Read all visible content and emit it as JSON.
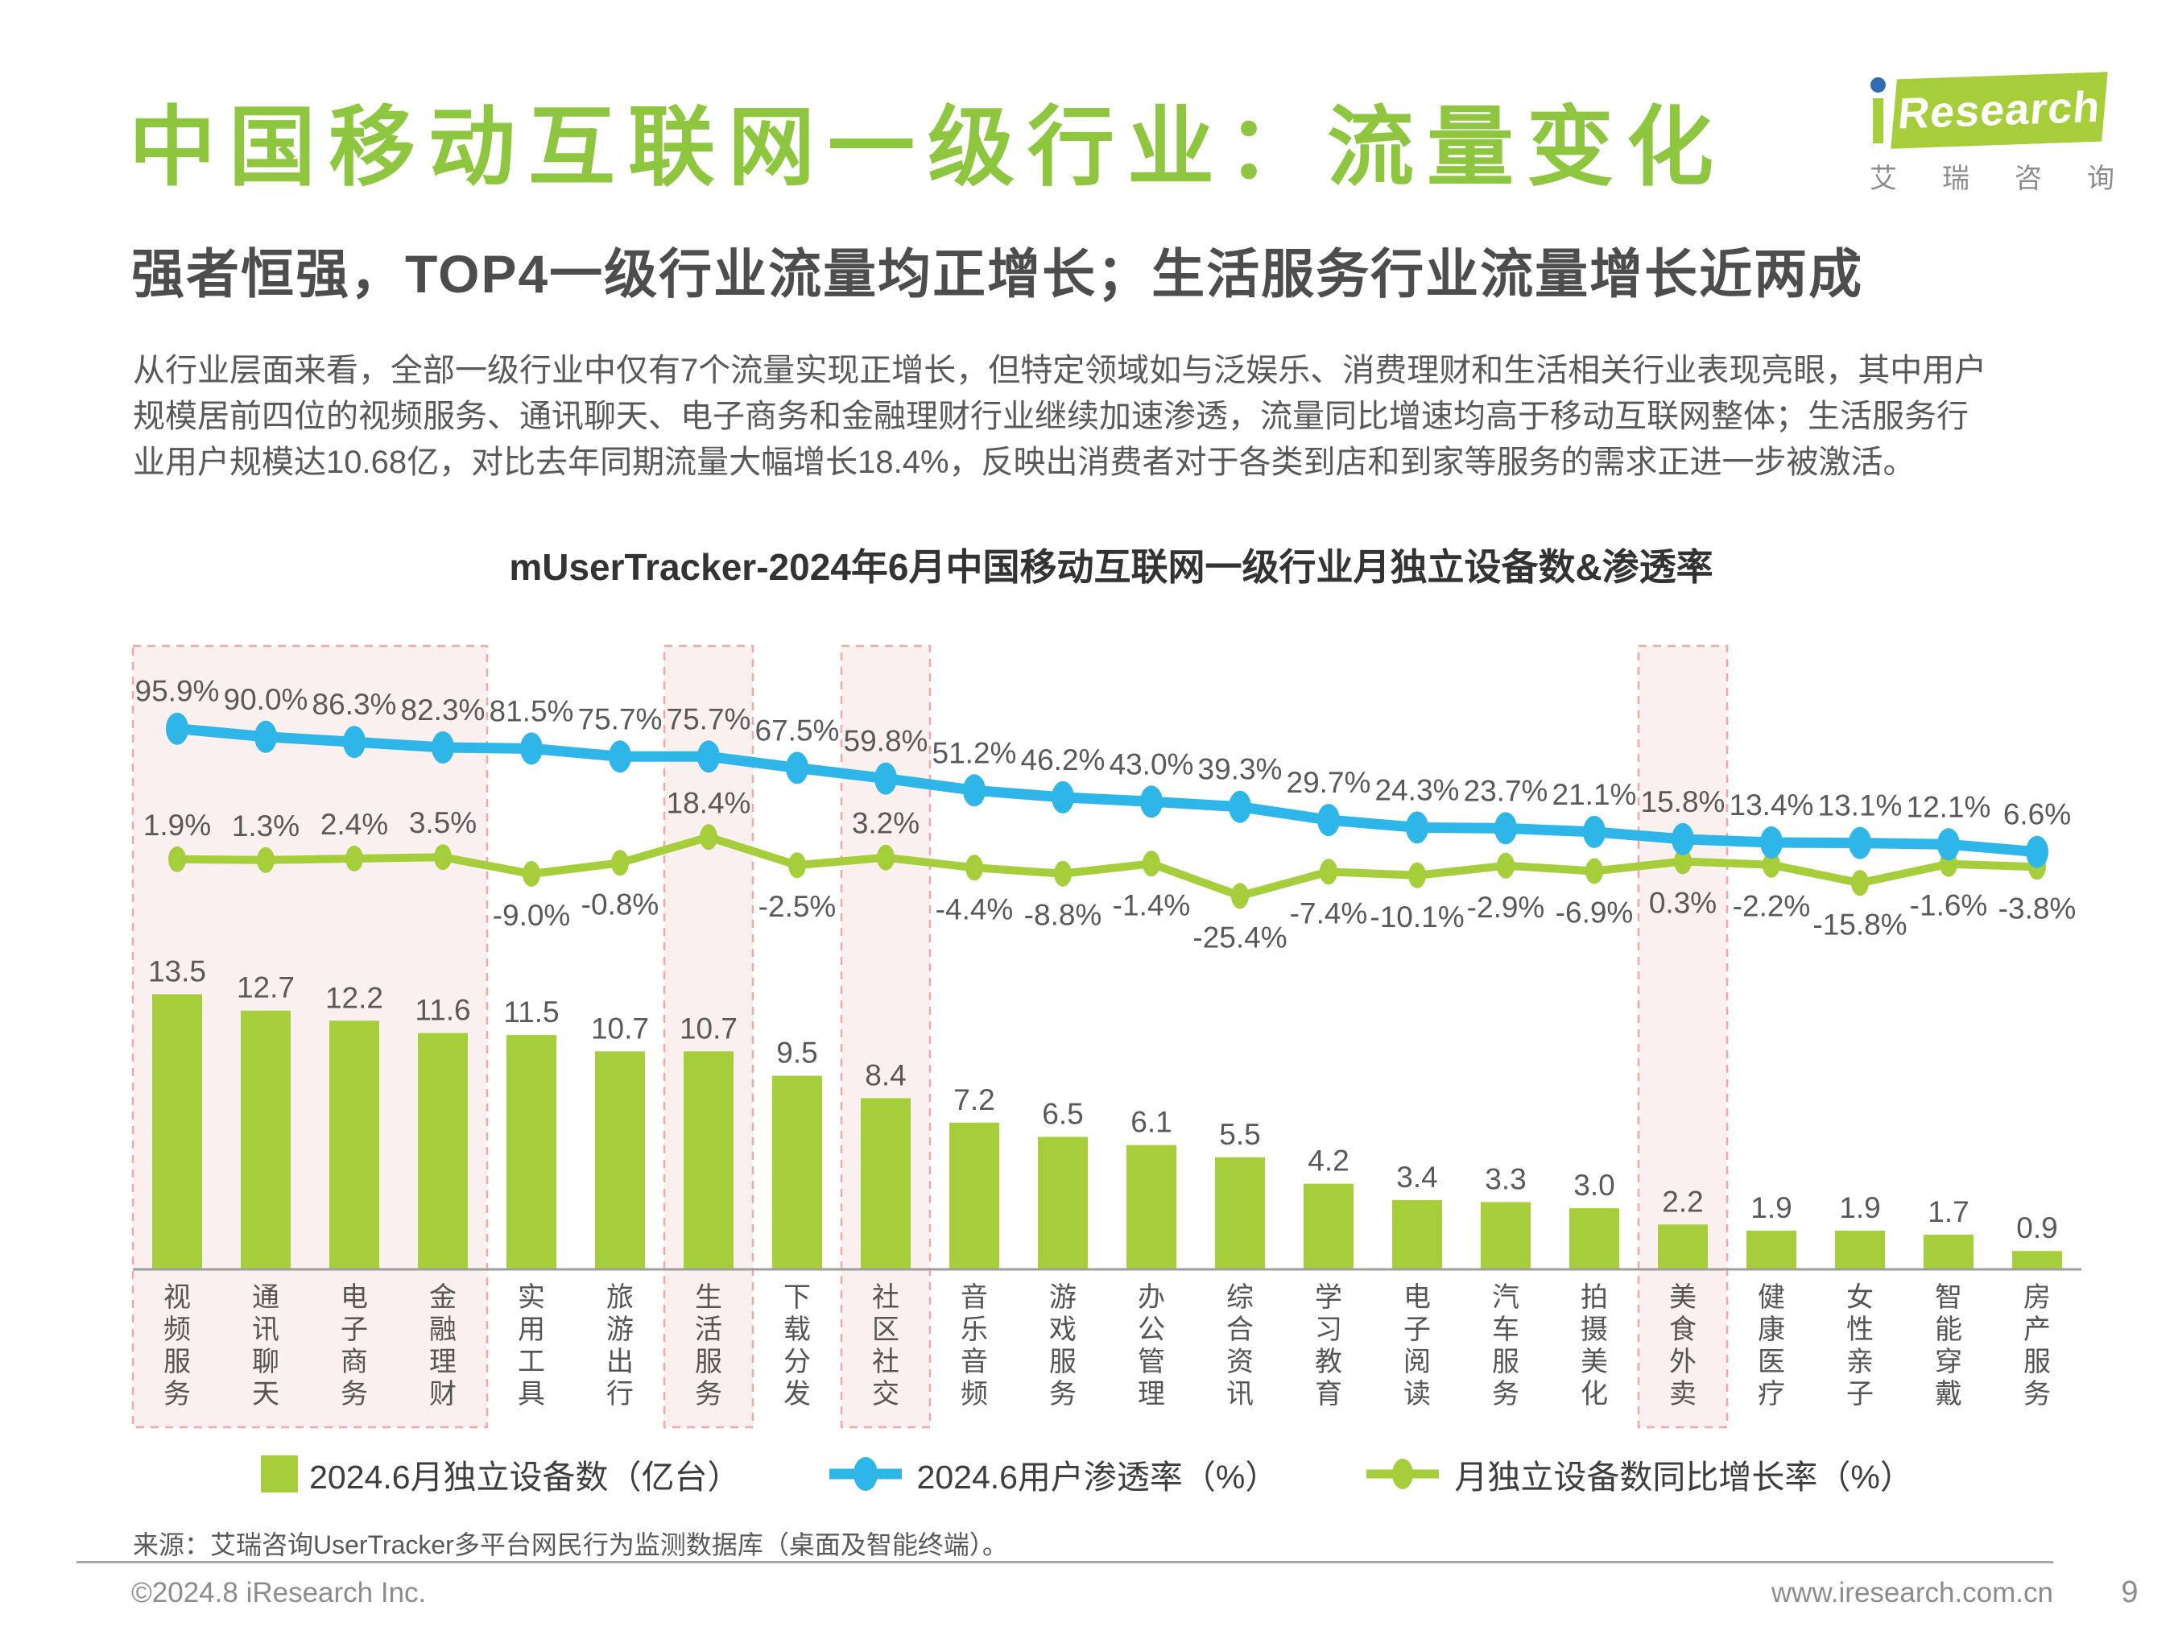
{
  "page": {
    "title": "中国移动互联网一级行业：流量变化",
    "subtitle": "强者恒强，TOP4一级行业流量均正增长；生活服务行业流量增长近两成",
    "paragraph_lines": [
      "从行业层面来看，全部一级行业中仅有7个流量实现正增长，但特定领域如与泛娱乐、消费理财和生活相关行业表现亮眼，其中用户",
      "规模居前四位的视频服务、通讯聊天、电子商务和金融理财行业继续加速渗透，流量同比增速均高于移动互联网整体；生活服务行",
      "业用户规模达10.68亿，对比去年同期流量大幅增长18.4%，反映出消费者对于各类到店和到家等服务的需求正进一步被激活。"
    ]
  },
  "logo": {
    "brand": "Research",
    "caption": "艾瑞咨询"
  },
  "chart_data": {
    "type": "combo-bar-line",
    "title": "mUserTracker-2024年6月中国移动互联网一级行业月独立设备数&渗透率",
    "categories": [
      "视频服务",
      "通讯聊天",
      "电子商务",
      "金融理财",
      "实用工具",
      "旅游出行",
      "生活服务",
      "下载分发",
      "社区社交",
      "音乐音频",
      "游戏服务",
      "办公管理",
      "综合资讯",
      "学习教育",
      "电子阅读",
      "汽车服务",
      "拍摄美化",
      "美食外卖",
      "健康医疗",
      "女性亲子",
      "智能穿戴",
      "房产服务"
    ],
    "series": [
      {
        "name": "2024.6月独立设备数（亿台）",
        "type": "bar",
        "values": [
          13.5,
          12.7,
          12.2,
          11.6,
          11.5,
          10.7,
          10.7,
          9.5,
          8.4,
          7.2,
          6.5,
          6.1,
          5.5,
          4.2,
          3.4,
          3.3,
          3.0,
          2.2,
          1.9,
          1.9,
          1.7,
          0.9
        ]
      },
      {
        "name": "2024.6用户渗透率（%）",
        "type": "line",
        "values": [
          95.9,
          90.0,
          86.3,
          82.3,
          81.5,
          75.7,
          75.7,
          67.5,
          59.8,
          51.2,
          46.2,
          43.0,
          39.3,
          29.7,
          24.3,
          23.7,
          21.1,
          15.8,
          13.4,
          13.1,
          12.1,
          6.6
        ]
      },
      {
        "name": "月独立设备数同比增长率（%）",
        "type": "line",
        "values": [
          1.9,
          1.3,
          2.4,
          3.5,
          -9.0,
          -0.8,
          18.4,
          -2.5,
          3.2,
          -4.4,
          -8.8,
          -1.4,
          -25.4,
          -7.4,
          -10.1,
          -2.9,
          -6.9,
          0.3,
          -2.2,
          -15.8,
          -1.6,
          -3.8
        ]
      }
    ],
    "highlighted_categories": [
      "视频服务",
      "通讯聊天",
      "电子商务",
      "金融理财",
      "生活服务",
      "社区社交",
      "美食外卖"
    ],
    "legend_position": "bottom",
    "bar_axis_range": [
      0,
      14
    ],
    "penetration_axis_range": [
      0,
      100
    ],
    "growth_axis_range": [
      -30,
      20
    ],
    "colors": {
      "bar": "#A6CE3B",
      "penetration_line": "#2FB6E9",
      "growth_line": "#A6CE3B",
      "band_fill": "#FBF0F0",
      "band_border": "#F1A7A7",
      "axis": "#9E9E9E",
      "value_label": "#595959",
      "category_label": "#555555",
      "title_green": "#8EC63F"
    }
  },
  "footer": {
    "source": "来源：艾瑞咨询UserTracker多平台网民行为监测数据库（桌面及智能终端）。",
    "copyright": "©2024.8 iResearch Inc.",
    "website": "www.iresearch.com.cn",
    "page_number": "9"
  }
}
